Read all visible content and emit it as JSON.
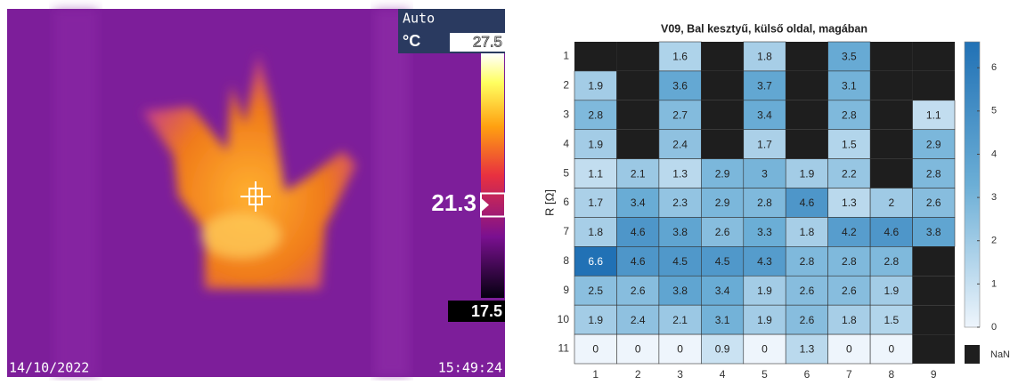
{
  "thermal": {
    "mode": "Auto",
    "unit": "°C",
    "max": 27.5,
    "spot": 21.3,
    "min": 17.5,
    "date": "14/10/2022",
    "time": "15:49:24"
  },
  "chart_data": {
    "type": "heatmap",
    "title": "V09, Bal kesztyű, külső oldal, magában",
    "ylabel": "R [Ω]",
    "columns": [
      1,
      2,
      3,
      4,
      5,
      6,
      7,
      8,
      9
    ],
    "rows": [
      1,
      2,
      3,
      4,
      5,
      6,
      7,
      8,
      9,
      10,
      11
    ],
    "values": [
      [
        null,
        null,
        1.6,
        null,
        1.8,
        null,
        3.5,
        null,
        null
      ],
      [
        1.9,
        null,
        3.6,
        null,
        3.7,
        null,
        3.1,
        null,
        null
      ],
      [
        2.8,
        null,
        2.7,
        null,
        3.4,
        null,
        2.8,
        null,
        1.1
      ],
      [
        1.9,
        null,
        2.4,
        null,
        1.7,
        null,
        1.5,
        null,
        2.9
      ],
      [
        1.1,
        2.1,
        1.3,
        2.9,
        3,
        1.9,
        2.2,
        null,
        2.8
      ],
      [
        1.7,
        3.4,
        2.3,
        2.9,
        2.8,
        4.6,
        1.3,
        2,
        2.6
      ],
      [
        1.8,
        4.6,
        3.8,
        2.6,
        3.3,
        1.8,
        4.2,
        4.6,
        3.8
      ],
      [
        6.6,
        4.6,
        4.5,
        4.5,
        4.3,
        2.8,
        2.8,
        2.8,
        null
      ],
      [
        2.5,
        2.6,
        3.8,
        3.4,
        1.9,
        2.6,
        2.6,
        1.9,
        null
      ],
      [
        1.9,
        2.4,
        2.1,
        3.1,
        1.9,
        2.6,
        1.8,
        1.5,
        null
      ],
      [
        0,
        0,
        0,
        0.9,
        0,
        1.3,
        0,
        0,
        null
      ]
    ],
    "clim": [
      0,
      6.6
    ],
    "cticks": [
      0,
      1,
      2,
      3,
      4,
      5,
      6
    ],
    "nan_label": "NaN",
    "nan_color": "#1e1e1e"
  }
}
